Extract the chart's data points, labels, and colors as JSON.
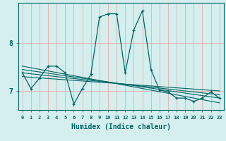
{
  "title": "",
  "xlabel": "Humidex (Indice chaleur)",
  "xlim": [
    -0.5,
    23.5
  ],
  "ylim": [
    6.6,
    8.85
  ],
  "yticks": [
    7,
    8
  ],
  "xticks": [
    0,
    1,
    2,
    3,
    4,
    5,
    6,
    7,
    8,
    9,
    10,
    11,
    12,
    13,
    14,
    15,
    16,
    17,
    18,
    19,
    20,
    21,
    22,
    23
  ],
  "background_color": "#d5eeee",
  "line_color": "#006666",
  "grid_color_h": "#e8a0a0",
  "grid_color_v": "#e8a0a0",
  "main_line_x": [
    0,
    1,
    2,
    3,
    4,
    5,
    6,
    7,
    8,
    9,
    10,
    11,
    12,
    13,
    14,
    15,
    16,
    17,
    18,
    19,
    20,
    21,
    22,
    23
  ],
  "main_line_y": [
    7.38,
    7.05,
    7.27,
    7.52,
    7.52,
    7.38,
    6.72,
    7.05,
    7.35,
    8.55,
    8.62,
    8.62,
    7.38,
    8.28,
    8.68,
    7.45,
    7.02,
    6.98,
    6.85,
    6.85,
    6.78,
    6.85,
    6.98,
    6.85
  ],
  "trend1_x": [
    0,
    23
  ],
  "trend1_y": [
    7.52,
    6.75
  ],
  "trend2_x": [
    0,
    23
  ],
  "trend2_y": [
    7.45,
    6.85
  ],
  "trend3_x": [
    0,
    23
  ],
  "trend3_y": [
    7.38,
    6.92
  ],
  "trend4_x": [
    0,
    23
  ],
  "trend4_y": [
    7.3,
    7.0
  ]
}
